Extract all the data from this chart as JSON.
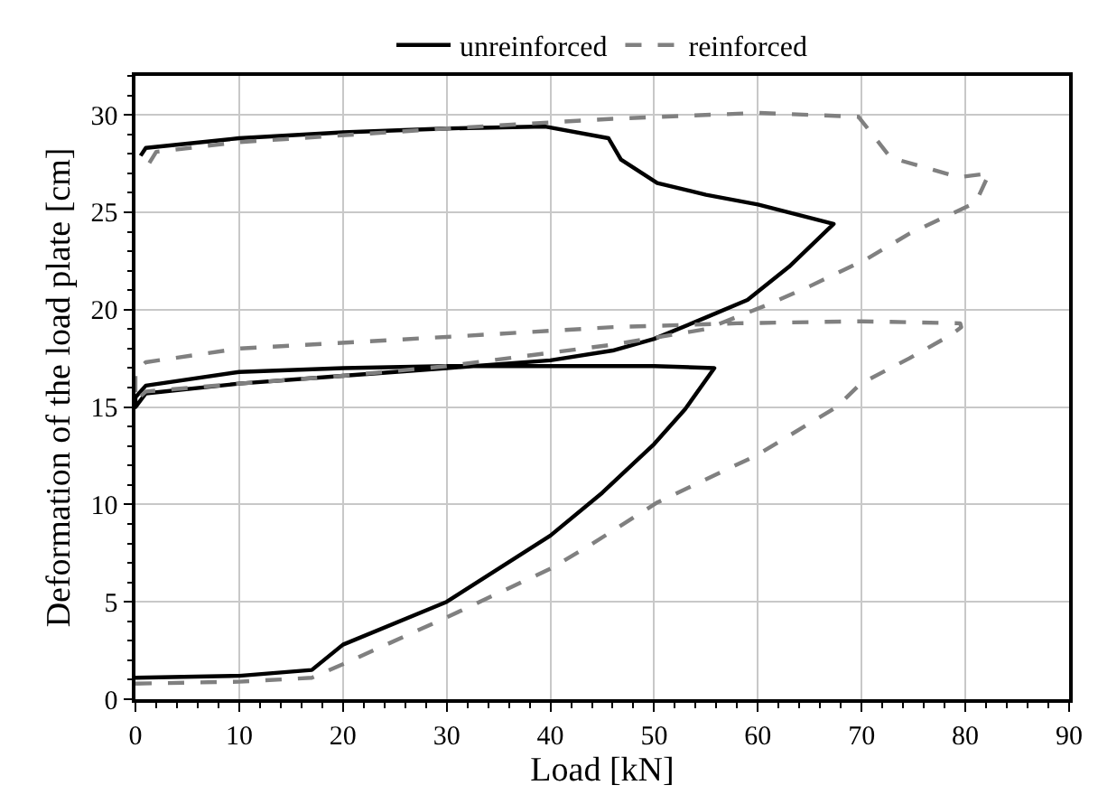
{
  "chart_data": {
    "type": "line",
    "xlabel": "Load [kN]",
    "ylabel": "Deformation of the load plate [cm]",
    "xlim": [
      0,
      90
    ],
    "xticks": [
      0,
      10,
      20,
      30,
      40,
      50,
      60,
      70,
      80,
      90
    ],
    "ylim": [
      0,
      32
    ],
    "yticks": [
      0,
      5,
      10,
      15,
      20,
      25,
      30
    ],
    "grid": true,
    "legend": "top",
    "marker": "none",
    "series": [
      {
        "name": "unreinforced",
        "color": "#000000",
        "line_style": "solid",
        "x": [
          0,
          10,
          17,
          20,
          30,
          40,
          45,
          50,
          53,
          55.8,
          50,
          40,
          30,
          20,
          10,
          1,
          0,
          0,
          1,
          10,
          20,
          30,
          40,
          46,
          50,
          55,
          59,
          63,
          67.3,
          60,
          55,
          50.3,
          46.8,
          45.6,
          39.5,
          30,
          20,
          10,
          1,
          0.5
        ],
        "values": [
          1.1,
          1.2,
          1.5,
          2.8,
          5.0,
          8.4,
          10.6,
          13.1,
          14.9,
          17.0,
          17.1,
          17.1,
          17.1,
          17.0,
          16.8,
          16.1,
          15.5,
          15.0,
          15.7,
          16.2,
          16.6,
          17.0,
          17.4,
          17.9,
          18.5,
          19.6,
          20.5,
          22.2,
          24.4,
          25.4,
          25.9,
          26.5,
          27.7,
          28.8,
          29.4,
          29.3,
          29.1,
          28.8,
          28.3,
          27.9
        ]
      },
      {
        "name": "reinforced",
        "color": "#808080",
        "line_style": "dashed",
        "x": [
          0,
          10,
          17,
          20,
          30,
          40,
          43.8,
          50.3,
          59.8,
          67.6,
          69.9,
          74.6,
          78.6,
          79.6,
          79.5,
          70,
          58,
          46,
          30,
          10,
          1,
          0,
          0,
          1,
          10,
          20,
          30,
          46,
          55,
          60.7,
          65,
          70.5,
          74.6,
          78.6,
          81,
          82.3,
          79.4,
          72.8,
          69.7,
          60,
          46,
          30,
          10,
          2,
          0.6
        ],
        "values": [
          0.8,
          0.9,
          1.1,
          1.8,
          4.2,
          6.7,
          7.9,
          10.1,
          12.5,
          15.0,
          16.2,
          17.5,
          18.7,
          19.1,
          19.3,
          19.4,
          19.3,
          19.1,
          18.6,
          18.0,
          17.3,
          16.8,
          15.3,
          15.8,
          16.2,
          16.6,
          17.1,
          18.2,
          19.0,
          20.2,
          21.2,
          22.6,
          23.9,
          24.9,
          25.5,
          27.0,
          26.8,
          27.8,
          29.9,
          30.1,
          29.8,
          29.3,
          28.6,
          28.1,
          26.9
        ]
      }
    ]
  }
}
